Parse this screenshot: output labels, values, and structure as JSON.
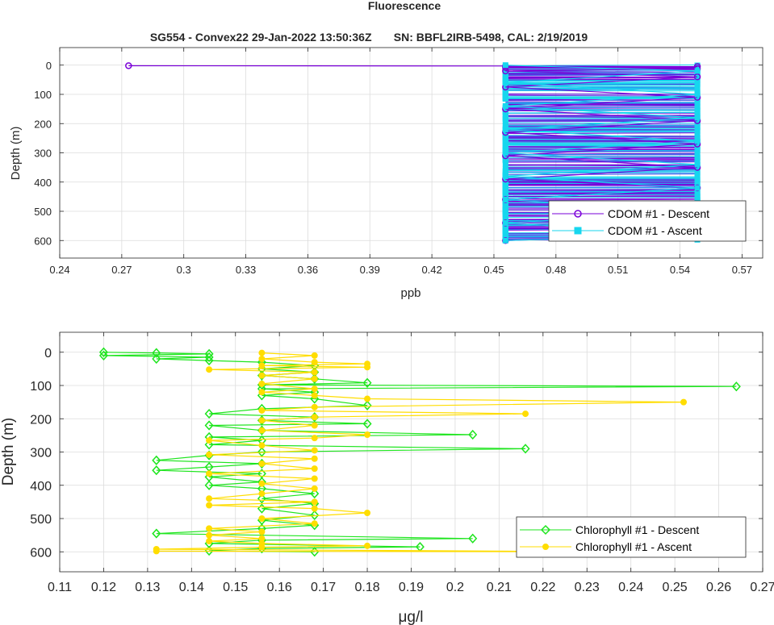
{
  "figure_title": "Fluorescence",
  "chart_data": [
    {
      "type": "line",
      "title": "SG554 - Convex22 29-Jan-2022 13:50:36Z       SN: BBFL2IRB-5498, CAL: 2/19/2019",
      "xlabel": "ppb",
      "ylabel": "Depth (m)",
      "xlim": [
        0.24,
        0.58
      ],
      "ylim": [
        -60,
        660
      ],
      "y_reversed": true,
      "grid": true,
      "legend_position": "lower-right",
      "x_ticks": [
        "0.24",
        "0.27",
        "0.3",
        "0.33",
        "0.36",
        "0.39",
        "0.42",
        "0.45",
        "0.48",
        "0.51",
        "0.54",
        "0.57"
      ],
      "y_ticks": [
        "0",
        "100",
        "200",
        "300",
        "400",
        "500",
        "600"
      ],
      "x_tick_values": [
        0.24,
        0.27,
        0.3,
        0.33,
        0.36,
        0.39,
        0.42,
        0.45,
        0.48,
        0.51,
        0.54,
        0.57
      ],
      "y_tick_values": [
        0,
        100,
        200,
        300,
        400,
        500,
        600
      ],
      "low_value": 0.4556,
      "high_value": 0.5484,
      "depth_range": [
        0,
        600
      ],
      "series": [
        {
          "name": "CDOM #1 - Descent",
          "color": "#7a00d9",
          "marker": "circle",
          "points": [
            [
              0.2733,
              2
            ],
            [
              0.4556,
              3
            ],
            [
              0.5484,
              5
            ],
            [
              0.4556,
              8
            ],
            [
              0.5484,
              12
            ],
            [
              0.4556,
              20
            ],
            [
              0.5484,
              40
            ],
            [
              0.4556,
              75
            ],
            [
              0.5484,
              110
            ],
            [
              0.4556,
              150
            ],
            [
              0.5484,
              190
            ],
            [
              0.4556,
              230
            ],
            [
              0.5484,
              270
            ],
            [
              0.4556,
              310
            ],
            [
              0.5484,
              350
            ],
            [
              0.4556,
              390
            ],
            [
              0.5484,
              420
            ],
            [
              0.4556,
              460
            ],
            [
              0.5484,
              500
            ],
            [
              0.4556,
              540
            ],
            [
              0.5484,
              580
            ],
            [
              0.4556,
              600
            ]
          ]
        },
        {
          "name": "CDOM #1 - Ascent",
          "color": "#17d6ee",
          "marker": "square",
          "points": [
            [
              0.4556,
              600
            ],
            [
              0.5484,
              580
            ],
            [
              0.4556,
              540
            ],
            [
              0.5484,
              500
            ],
            [
              0.4556,
              460
            ],
            [
              0.5484,
              420
            ],
            [
              0.4556,
              380
            ],
            [
              0.5484,
              340
            ],
            [
              0.4556,
              300
            ],
            [
              0.5484,
              260
            ],
            [
              0.4556,
              220
            ],
            [
              0.5484,
              180
            ],
            [
              0.4556,
              140
            ],
            [
              0.5484,
              100
            ],
            [
              0.4556,
              60
            ],
            [
              0.5484,
              20
            ],
            [
              0.4556,
              0
            ]
          ]
        }
      ]
    },
    {
      "type": "line",
      "xlabel": "μg/l",
      "ylabel": "Depth (m)",
      "xlim": [
        0.11,
        0.27
      ],
      "ylim": [
        -60,
        660
      ],
      "y_reversed": true,
      "grid": true,
      "legend_position": "lower-right",
      "x_ticks": [
        "0.11",
        "0.12",
        "0.13",
        "0.14",
        "0.15",
        "0.16",
        "0.17",
        "0.18",
        "0.19",
        "0.2",
        "0.21",
        "0.22",
        "0.23",
        "0.24",
        "0.25",
        "0.26",
        "0.27"
      ],
      "y_ticks": [
        "0",
        "100",
        "200",
        "300",
        "400",
        "500",
        "600"
      ],
      "x_tick_values": [
        0.11,
        0.12,
        0.13,
        0.14,
        0.15,
        0.16,
        0.17,
        0.18,
        0.19,
        0.2,
        0.21,
        0.22,
        0.23,
        0.24,
        0.25,
        0.26,
        0.27
      ],
      "y_tick_values": [
        0,
        100,
        200,
        300,
        400,
        500,
        600
      ],
      "series": [
        {
          "name": "Chlorophyll #1 - Descent",
          "color": "#1ee51e",
          "marker": "diamond",
          "points": [
            [
              0.12,
              0
            ],
            [
              0.132,
              2
            ],
            [
              0.144,
              5
            ],
            [
              0.12,
              10
            ],
            [
              0.144,
              15
            ],
            [
              0.132,
              20
            ],
            [
              0.144,
              25
            ],
            [
              0.156,
              30
            ],
            [
              0.168,
              40
            ],
            [
              0.156,
              50
            ],
            [
              0.168,
              60
            ],
            [
              0.156,
              70
            ],
            [
              0.168,
              80
            ],
            [
              0.18,
              92
            ],
            [
              0.156,
              98
            ],
            [
              0.264,
              103
            ],
            [
              0.156,
              110
            ],
            [
              0.168,
              120
            ],
            [
              0.156,
              130
            ],
            [
              0.168,
              140
            ],
            [
              0.18,
              160
            ],
            [
              0.156,
              170
            ],
            [
              0.144,
              185
            ],
            [
              0.168,
              195
            ],
            [
              0.156,
              205
            ],
            [
              0.18,
              215
            ],
            [
              0.144,
              220
            ],
            [
              0.156,
              235
            ],
            [
              0.204,
              248
            ],
            [
              0.144,
              255
            ],
            [
              0.156,
              265
            ],
            [
              0.144,
              278
            ],
            [
              0.216,
              290
            ],
            [
              0.156,
              300
            ],
            [
              0.144,
              310
            ],
            [
              0.132,
              325
            ],
            [
              0.156,
              335
            ],
            [
              0.144,
              345
            ],
            [
              0.132,
              355
            ],
            [
              0.156,
              365
            ],
            [
              0.144,
              375
            ],
            [
              0.156,
              390
            ],
            [
              0.144,
              400
            ],
            [
              0.156,
              410
            ],
            [
              0.168,
              425
            ],
            [
              0.156,
              440
            ],
            [
              0.168,
              455
            ],
            [
              0.156,
              470
            ],
            [
              0.168,
              490
            ],
            [
              0.156,
              505
            ],
            [
              0.168,
              520
            ],
            [
              0.156,
              530
            ],
            [
              0.132,
              545
            ],
            [
              0.204,
              560
            ],
            [
              0.156,
              565
            ],
            [
              0.144,
              575
            ],
            [
              0.192,
              585
            ],
            [
              0.156,
              590
            ],
            [
              0.144,
              597
            ],
            [
              0.168,
              600
            ]
          ]
        },
        {
          "name": "Chlorophyll #1 - Ascent",
          "color": "#ffdd00",
          "marker": "circle",
          "points": [
            [
              0.132,
              598
            ],
            [
              0.24,
              600
            ],
            [
              0.132,
              592
            ],
            [
              0.156,
              586
            ],
            [
              0.18,
              582
            ],
            [
              0.156,
              575
            ],
            [
              0.144,
              568
            ],
            [
              0.156,
              560
            ],
            [
              0.144,
              550
            ],
            [
              0.156,
              540
            ],
            [
              0.144,
              530
            ],
            [
              0.168,
              515
            ],
            [
              0.156,
              500
            ],
            [
              0.18,
              483
            ],
            [
              0.168,
              470
            ],
            [
              0.144,
              460
            ],
            [
              0.168,
              450
            ],
            [
              0.144,
              440
            ],
            [
              0.156,
              425
            ],
            [
              0.168,
              410
            ],
            [
              0.156,
              395
            ],
            [
              0.168,
              380
            ],
            [
              0.144,
              365
            ],
            [
              0.168,
              350
            ],
            [
              0.156,
              335
            ],
            [
              0.168,
              320
            ],
            [
              0.144,
              308
            ],
            [
              0.168,
              295
            ],
            [
              0.156,
              280
            ],
            [
              0.144,
              265
            ],
            [
              0.168,
              258
            ],
            [
              0.18,
              248
            ],
            [
              0.156,
              235
            ],
            [
              0.168,
              220
            ],
            [
              0.156,
              205
            ],
            [
              0.168,
              195
            ],
            [
              0.216,
              185
            ],
            [
              0.156,
              175
            ],
            [
              0.168,
              165
            ],
            [
              0.252,
              150
            ],
            [
              0.18,
              140
            ],
            [
              0.168,
              130
            ],
            [
              0.156,
              120
            ],
            [
              0.168,
              110
            ],
            [
              0.156,
              95
            ],
            [
              0.168,
              80
            ],
            [
              0.156,
              70
            ],
            [
              0.168,
              60
            ],
            [
              0.144,
              52
            ],
            [
              0.18,
              45
            ],
            [
              0.156,
              40
            ],
            [
              0.18,
              35
            ],
            [
              0.168,
              30
            ],
            [
              0.156,
              20
            ],
            [
              0.168,
              10
            ],
            [
              0.156,
              2
            ]
          ]
        }
      ]
    }
  ]
}
